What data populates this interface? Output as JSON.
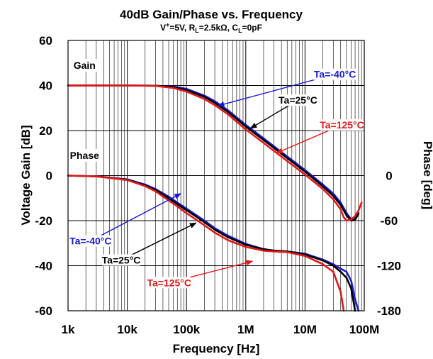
{
  "chart_data": {
    "type": "line",
    "title": "40dB Gain/Phase vs. Frequency",
    "subtitle": {
      "v_prefix": "V",
      "v_sup": "+",
      "v_value": "=5V, R",
      "rl_sub": "L",
      "rl_value": "=2.5kΩ, C",
      "cl_sub": "L",
      "cl_value": "=0pF"
    },
    "xlabel": "Frequency [Hz]",
    "ylabel": "Voltage Gain [dB]",
    "y2label": "Phase [deg]",
    "xscale": "log",
    "xlim": [
      1000,
      100000000
    ],
    "ylim": [
      -60,
      60
    ],
    "y2lim": [
      -180,
      180
    ],
    "grid": true,
    "x_ticks": [
      {
        "value": 1000,
        "label": "1k"
      },
      {
        "value": 10000,
        "label": "10k"
      },
      {
        "value": 100000,
        "label": "100k"
      },
      {
        "value": 1000000,
        "label": "1M"
      },
      {
        "value": 10000000,
        "label": "10M"
      },
      {
        "value": 100000000,
        "label": "100M"
      }
    ],
    "y_ticks": [
      {
        "value": 60,
        "label": "60"
      },
      {
        "value": 40,
        "label": "40"
      },
      {
        "value": 20,
        "label": "20"
      },
      {
        "value": 0,
        "label": "0"
      },
      {
        "value": -20,
        "label": "-20"
      },
      {
        "value": -40,
        "label": "-40"
      },
      {
        "value": -60,
        "label": "-60"
      }
    ],
    "y2_ticks": [
      {
        "value": 0,
        "label": "0"
      },
      {
        "value": -60,
        "label": "-60"
      },
      {
        "value": -120,
        "label": "-120"
      },
      {
        "value": -180,
        "label": "-180"
      }
    ],
    "group_labels": [
      {
        "text": "Gain",
        "x": 1900,
        "y": 49
      },
      {
        "text": "Phase",
        "x": 1900,
        "y": 9
      }
    ],
    "series": [
      {
        "name": "Ta=-40°C",
        "quantity": "gain",
        "axis": "left",
        "color": "#1a1ad0",
        "x": [
          1000,
          10000,
          30000,
          60000,
          100000,
          200000,
          300000,
          500000,
          1000000,
          2000000,
          5000000,
          10000000,
          20000000,
          30000000,
          40000000,
          50000000,
          60000000,
          70000000,
          80000000
        ],
        "y": [
          40,
          40,
          39.9,
          39.5,
          38.5,
          35.5,
          33,
          29,
          22.5,
          16.5,
          8.5,
          2.5,
          -4,
          -8,
          -12,
          -16.5,
          -19.5,
          -19,
          -16.5
        ]
      },
      {
        "name": "Ta=25°C",
        "quantity": "gain",
        "axis": "left",
        "color": "#000000",
        "x": [
          1000,
          10000,
          30000,
          60000,
          100000,
          200000,
          300000,
          500000,
          1000000,
          2000000,
          5000000,
          10000000,
          20000000,
          30000000,
          40000000,
          50000000,
          60000000,
          70000000,
          80000000
        ],
        "y": [
          40,
          40,
          39.9,
          39.3,
          38,
          35,
          32.3,
          28.3,
          21.8,
          15.8,
          7.8,
          1.8,
          -4.8,
          -9,
          -13,
          -17.5,
          -20,
          -19.5,
          -17
        ]
      },
      {
        "name": "Ta=125°C",
        "quantity": "gain",
        "axis": "left",
        "color": "#e01818",
        "x": [
          1000,
          10000,
          30000,
          60000,
          100000,
          200000,
          300000,
          500000,
          1000000,
          2000000,
          5000000,
          10000000,
          20000000,
          30000000,
          40000000,
          45000000,
          50000000,
          60000000,
          70000000,
          80000000,
          90000000
        ],
        "y": [
          40,
          40,
          39.8,
          38.9,
          37.3,
          34,
          31.3,
          27.2,
          20.5,
          14.5,
          6.5,
          0.5,
          -6,
          -10.5,
          -15,
          -18.5,
          -20,
          -19.5,
          -18,
          -15.5,
          -12
        ]
      },
      {
        "name": "Ta=-40°C",
        "quantity": "phase",
        "axis": "right",
        "color": "#1a1ad0",
        "x": [
          1000,
          3000,
          10000,
          20000,
          30000,
          50000,
          70000,
          100000,
          200000,
          300000,
          500000,
          1000000,
          2000000,
          3000000,
          5000000,
          10000000,
          20000000,
          30000000,
          40000000,
          50000000,
          60000000,
          70000000,
          80000000
        ],
        "y": [
          0,
          -1,
          -5,
          -12,
          -18,
          -28,
          -36,
          -44,
          -60,
          -70,
          -80,
          -91,
          -98,
          -100,
          -101,
          -104,
          -112,
          -118,
          -124,
          -128,
          -140,
          -165,
          -180
        ]
      },
      {
        "name": "Ta=25°C",
        "quantity": "phase",
        "axis": "right",
        "color": "#000000",
        "x": [
          1000,
          3000,
          10000,
          20000,
          30000,
          50000,
          70000,
          100000,
          200000,
          300000,
          500000,
          1000000,
          2000000,
          3000000,
          5000000,
          10000000,
          20000000,
          30000000,
          40000000,
          50000000,
          60000000,
          70000000
        ],
        "y": [
          0,
          -1,
          -5.5,
          -13,
          -19,
          -30,
          -38,
          -46,
          -62,
          -72,
          -82,
          -92,
          -98,
          -100,
          -101,
          -105,
          -113,
          -120,
          -128,
          -136,
          -150,
          -180
        ]
      },
      {
        "name": "Ta=125°C",
        "quantity": "phase",
        "axis": "right",
        "color": "#e01818",
        "x": [
          1000,
          3000,
          10000,
          20000,
          30000,
          50000,
          70000,
          100000,
          200000,
          300000,
          500000,
          1000000,
          2000000,
          3000000,
          5000000,
          10000000,
          20000000,
          30000000,
          40000000,
          45000000
        ],
        "y": [
          0,
          -1,
          -6,
          -14,
          -21,
          -33,
          -41,
          -50,
          -66,
          -76,
          -86,
          -95,
          -100,
          -101,
          -102,
          -107,
          -118,
          -128,
          -155,
          -180
        ]
      }
    ],
    "annotations": [
      {
        "text": "Ta=-40°C",
        "color": "#1a1ad0",
        "label_x": 32000000.0,
        "label_y": 45,
        "arrow_to_x": 340000.0,
        "arrow_to_y": 31
      },
      {
        "text": "Ta=25°C",
        "color": "#000000",
        "label_x": 7600000.0,
        "label_y": 33.5,
        "arrow_to_x": 1200000.0,
        "arrow_to_y": 21
      },
      {
        "text": "Ta=125°C",
        "color": "#e01818",
        "label_x": 42000000.0,
        "label_y": 22.5,
        "arrow_to_x": 3300000.0,
        "arrow_to_y": 10
      },
      {
        "text": "Ta=-40°C",
        "color": "#1a1ad0",
        "label_x": 2400,
        "label_y": -29,
        "arrow_to_x": 80000.0,
        "arrow_to_y": -8
      },
      {
        "text": "Ta=25°C",
        "color": "#000000",
        "label_x": 7900,
        "label_y": -37.5,
        "arrow_to_x": 145000.0,
        "arrow_to_y": -21
      },
      {
        "text": "Ta=125°C",
        "color": "#e01818",
        "label_x": 51000.0,
        "label_y": -47.5,
        "arrow_to_x": 1300000.0,
        "arrow_to_y": -38
      }
    ]
  }
}
